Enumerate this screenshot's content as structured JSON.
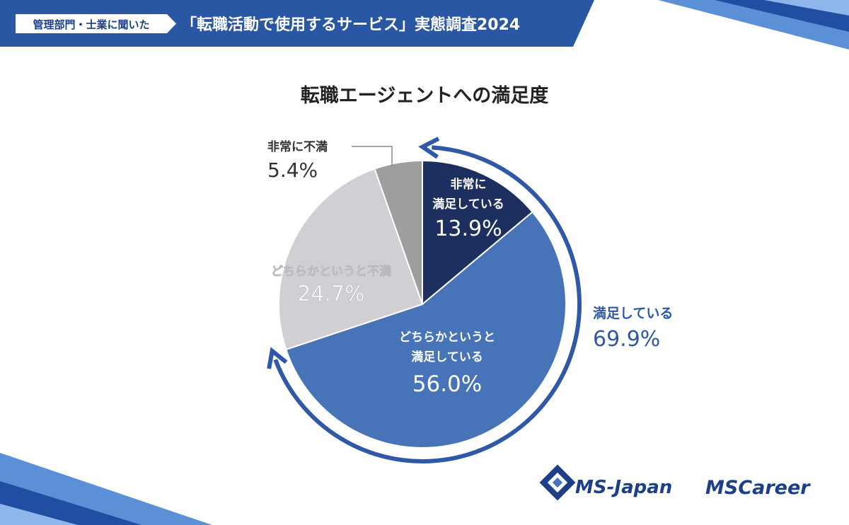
{
  "header": {
    "tag": "管理部門・士業に聞いた",
    "title": "「転職活動で使用するサービス」実態調査2024",
    "bar_color": "#2a57a4",
    "tag_bg": "#ffffff",
    "tag_color": "#1c3f87"
  },
  "chart_data": {
    "type": "pie",
    "title": "転職エージェントへの満足度",
    "slices": [
      {
        "label_lines": [
          "非常に",
          "満足している"
        ],
        "value": 13.9,
        "value_text": "13.9%",
        "color": "#1c2f5e",
        "text_color": "#ffffff"
      },
      {
        "label_lines": [
          "どちらかというと",
          "満足している"
        ],
        "value": 56.0,
        "value_text": "56.0%",
        "color": "#4774b8",
        "text_color": "#ffffff"
      },
      {
        "label_lines": [
          "どちらかというと不満"
        ],
        "value": 24.7,
        "value_text": "24.7%",
        "color": "#cfd0d4",
        "text_color": "#ffffff"
      },
      {
        "label_lines": [
          "非常に不満"
        ],
        "value": 5.4,
        "value_text": "5.4%",
        "color": "#9d9e9f",
        "text_color": "#333333"
      }
    ],
    "group_annotation": {
      "label": "満足している",
      "value_text": "69.9%",
      "color": "#2f58a6"
    },
    "legend": "none"
  },
  "logos": {
    "ms_japan": "MS-Japan",
    "ms_career": "MSCareer",
    "color": "#1c3f87"
  }
}
